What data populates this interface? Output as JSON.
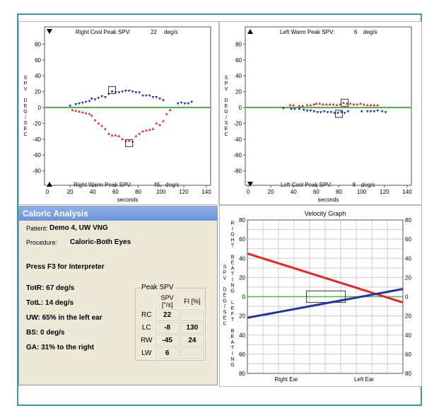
{
  "colors": {
    "frame": "#3c9aa6",
    "cool": "#2233aa",
    "warm": "#ee2222",
    "baseline": "#44bb44"
  },
  "right_plot": {
    "top_label": "Right Cool Peak SPV:",
    "top_value": "22",
    "top_unit": "deg/s",
    "bottom_label": "Right Warm Peak SPV:",
    "bottom_value": "-45",
    "bottom_unit": "deg/s",
    "y_axis_title": "SPV DEG/SEC"
  },
  "left_plot": {
    "top_label": "Left Warm Peak SPV:",
    "top_value": "6",
    "top_unit": "deg/s",
    "bottom_label": "Left Cool Peak SPV:",
    "bottom_value": "-8",
    "bottom_unit": "deg/s",
    "y_axis_title": "SPV DEG/SEC"
  },
  "caloric": {
    "title": "Caloric Analysis",
    "patient_label": "Patient:",
    "patient_value": "Demo  4, UW VNG",
    "procedure_label": "Procedure:",
    "procedure_value": "Caloric-Both Eyes",
    "hint": "Press F3 for Interpreter",
    "results": [
      "TotR: 67 deg/s",
      "TotL: 14 deg/s",
      "UW: 65% in the left ear",
      "BS: 0 deg/s",
      "GA: 31% to the right"
    ],
    "peak": {
      "title": "Peak SPV",
      "headers": [
        "SPV [°/s]",
        "FI [%]"
      ],
      "rows": [
        {
          "label": "RC",
          "spv": "22",
          "fi": ""
        },
        {
          "label": "LC",
          "spv": "-8",
          "fi": "130"
        },
        {
          "label": "RW",
          "spv": "-45",
          "fi": "24"
        },
        {
          "label": "LW",
          "spv": "6",
          "fi": ""
        }
      ]
    }
  },
  "chart_data": [
    {
      "type": "scatter",
      "name": "right-ear-caloric",
      "xlabel": "seconds",
      "ylabel": "SPV DEG/SEC",
      "xlim": [
        0,
        140
      ],
      "ylim": [
        -100,
        100
      ],
      "xticks": [
        "0",
        "20",
        "40",
        "60",
        "80",
        "100",
        "120",
        "140"
      ],
      "yticks": [
        "80",
        "60",
        "40",
        "20",
        "0",
        "-20",
        "-40",
        "-60",
        "-80"
      ],
      "series": [
        {
          "name": "Right Cool",
          "color": "#2233aa",
          "marker": "down-triangle",
          "points": [
            [
              20,
              2
            ],
            [
              25,
              4
            ],
            [
              28,
              5
            ],
            [
              31,
              6
            ],
            [
              34,
              7
            ],
            [
              37,
              8
            ],
            [
              39,
              11
            ],
            [
              42,
              10
            ],
            [
              45,
              12
            ],
            [
              48,
              14
            ],
            [
              51,
              13
            ],
            [
              54,
              17
            ],
            [
              57,
              20
            ],
            [
              60,
              19
            ],
            [
              63,
              19
            ],
            [
              66,
              20
            ],
            [
              69,
              21
            ],
            [
              72,
              21
            ],
            [
              75,
              20
            ],
            [
              78,
              19
            ],
            [
              81,
              19
            ],
            [
              84,
              15
            ],
            [
              87,
              15
            ],
            [
              90,
              15
            ],
            [
              93,
              13
            ],
            [
              96,
              13
            ],
            [
              99,
              11
            ],
            [
              102,
              9
            ],
            [
              115,
              5
            ],
            [
              118,
              6
            ],
            [
              121,
              5
            ],
            [
              124,
              5
            ],
            [
              127,
              7
            ]
          ]
        },
        {
          "name": "Right Warm",
          "color": "#ee2222",
          "marker": "up-triangle",
          "points": [
            [
              22,
              -3
            ],
            [
              25,
              -4
            ],
            [
              28,
              -5
            ],
            [
              31,
              -6
            ],
            [
              34,
              -7
            ],
            [
              37,
              -8
            ],
            [
              39,
              -10
            ],
            [
              42,
              -16
            ],
            [
              45,
              -20
            ],
            [
              48,
              -23
            ],
            [
              51,
              -27
            ],
            [
              54,
              -33
            ],
            [
              57,
              -35
            ],
            [
              60,
              -35
            ],
            [
              63,
              -36
            ],
            [
              66,
              -40
            ],
            [
              69,
              -42
            ],
            [
              72,
              -42
            ],
            [
              75,
              -43
            ],
            [
              78,
              -36
            ],
            [
              81,
              -33
            ],
            [
              84,
              -30
            ],
            [
              87,
              -29
            ],
            [
              90,
              -28
            ],
            [
              93,
              -27
            ],
            [
              96,
              -20
            ],
            [
              99,
              -22
            ],
            [
              102,
              -17
            ],
            [
              105,
              -8
            ],
            [
              108,
              -3
            ]
          ]
        }
      ],
      "peak_markers": [
        [
          57,
          22
        ],
        [
          72,
          -45
        ]
      ]
    },
    {
      "type": "scatter",
      "name": "left-ear-caloric",
      "xlabel": "seconds",
      "ylabel": "SPV DEG/SEC",
      "xlim": [
        0,
        140
      ],
      "ylim": [
        -100,
        100
      ],
      "xticks": [
        "0",
        "20",
        "40",
        "60",
        "80",
        "100",
        "120",
        "140"
      ],
      "yticks": [
        "80",
        "60",
        "40",
        "20",
        "0",
        "-20",
        "-40",
        "-60",
        "-80"
      ],
      "series": [
        {
          "name": "Left Warm",
          "color": "#ee2222",
          "marker": "up-triangle",
          "points": [
            [
              37,
              3
            ],
            [
              40,
              3
            ],
            [
              45,
              2
            ],
            [
              48,
              2
            ],
            [
              52,
              3
            ],
            [
              55,
              3
            ],
            [
              58,
              4
            ],
            [
              60,
              5
            ],
            [
              63,
              5
            ],
            [
              66,
              4
            ],
            [
              69,
              4
            ],
            [
              72,
              4
            ],
            [
              75,
              4
            ],
            [
              78,
              3
            ],
            [
              81,
              4
            ],
            [
              84,
              6
            ],
            [
              87,
              5
            ],
            [
              90,
              5
            ],
            [
              93,
              4
            ],
            [
              96,
              4
            ],
            [
              99,
              5
            ],
            [
              102,
              4
            ],
            [
              105,
              3
            ],
            [
              108,
              3
            ],
            [
              111,
              3
            ],
            [
              114,
              3
            ]
          ]
        },
        {
          "name": "Left Cool",
          "color": "#2233aa",
          "marker": "down-triangle",
          "points": [
            [
              31,
              -1
            ],
            [
              38,
              -2
            ],
            [
              41,
              -2
            ],
            [
              45,
              -2
            ],
            [
              49,
              -3
            ],
            [
              52,
              -4
            ],
            [
              55,
              -4
            ],
            [
              58,
              -5
            ],
            [
              61,
              -6
            ],
            [
              64,
              -6
            ],
            [
              67,
              -5
            ],
            [
              70,
              -6
            ],
            [
              73,
              -6
            ],
            [
              76,
              -7
            ],
            [
              79,
              -7
            ],
            [
              82,
              -6
            ],
            [
              85,
              -7
            ],
            [
              88,
              -5
            ],
            [
              100,
              -5
            ],
            [
              105,
              -5
            ],
            [
              108,
              -5
            ],
            [
              111,
              -5
            ],
            [
              114,
              -4
            ],
            [
              118,
              -5
            ],
            [
              121,
              -6
            ]
          ]
        }
      ],
      "peak_markers": [
        [
          85,
          6
        ],
        [
          80,
          -8
        ]
      ]
    },
    {
      "type": "line",
      "name": "velocity-graph",
      "title": "Velocity Graph",
      "ylim": [
        -80,
        80
      ],
      "yticks": [
        "80",
        "60",
        "40",
        "20",
        "0",
        "20",
        "40",
        "60",
        "80"
      ],
      "xlabels": [
        "Right Ear",
        "Left Ear"
      ],
      "left_axis_title": "SPV DEG/SEC",
      "upper_label": "RIGHT BEATING",
      "lower_label": "LEFT BEATING",
      "series": [
        {
          "name": "Right-beating",
          "color": "#ee2222",
          "start": 45,
          "end": -6
        },
        {
          "name": "Left-beating",
          "color": "#2233aa",
          "start": -22,
          "end": 8
        }
      ],
      "normal_box": {
        "x_from": 0.38,
        "x_to": 0.63,
        "y_from": -6,
        "y_to": 6
      }
    }
  ]
}
